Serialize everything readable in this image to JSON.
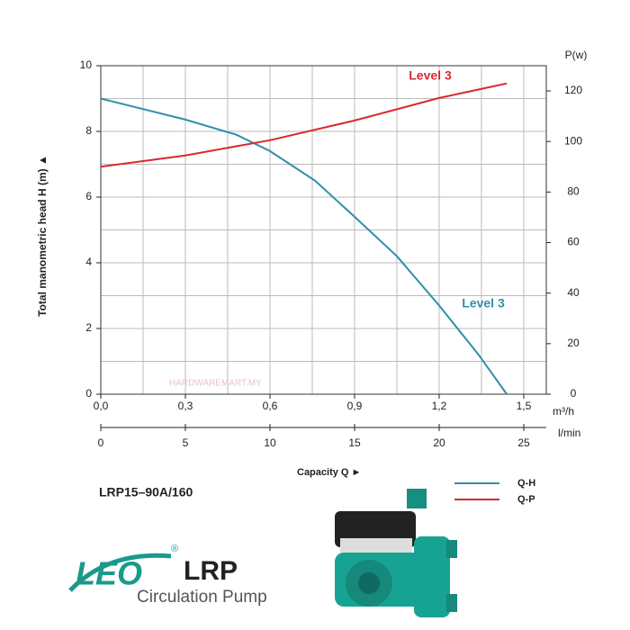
{
  "chart_data": {
    "type": "line",
    "ylabel": "Total manometric head H (m) ▲",
    "y2label": "P(w)",
    "xlabel": "m³/h",
    "x2label": "l/min",
    "caption": "Capacity Q ►",
    "xlim": [
      0,
      1.58
    ],
    "xticks": [
      {
        "value": 0,
        "label": "0,0"
      },
      {
        "value": 0.3,
        "label": "0,3"
      },
      {
        "value": 0.6,
        "label": "0,6"
      },
      {
        "value": 0.9,
        "label": "0,9"
      },
      {
        "value": 1.2,
        "label": "1,2"
      },
      {
        "value": 1.5,
        "label": "1,5"
      }
    ],
    "xgrid": [
      0.15,
      0.45,
      0.75,
      1.05,
      1.35
    ],
    "x2lim": [
      0,
      26.33
    ],
    "x2ticks": [
      0,
      5,
      10,
      15,
      20,
      25
    ],
    "ylim": [
      0,
      10
    ],
    "yticks": [
      0,
      2,
      4,
      6,
      8,
      10
    ],
    "ygrid": [
      1,
      3,
      5,
      7,
      9
    ],
    "y2lim": [
      0,
      130
    ],
    "y2ticks": [
      0,
      20,
      40,
      60,
      80,
      100,
      120
    ],
    "grid": true,
    "series": [
      {
        "name": "Q-H",
        "color": "#2f8fa8",
        "x": [
          0,
          0.3,
          0.48,
          0.6,
          0.76,
          0.9,
          1.05,
          1.2,
          1.34,
          1.44
        ],
        "values": [
          9.0,
          8.36,
          7.9,
          7.4,
          6.5,
          5.4,
          4.2,
          2.7,
          1.2,
          0
        ]
      },
      {
        "name": "Q-P",
        "color": "#d9292f",
        "axis": "y2",
        "x": [
          0,
          0.3,
          0.6,
          0.9,
          1.2,
          1.44
        ],
        "values": [
          90,
          94.5,
          100.5,
          108.3,
          117.2,
          123
        ]
      }
    ],
    "annotations": [
      {
        "text": "Level 3",
        "color": "#d9292f"
      },
      {
        "text": "Level 3",
        "color": "#2f8fa8"
      }
    ]
  },
  "model": "LRP15–90A/160",
  "watermark": "HARDWAREMART.MY",
  "brand": {
    "logo": "LEO",
    "registered": "®",
    "product": "LRP",
    "subtitle": "Circulation Pump"
  }
}
